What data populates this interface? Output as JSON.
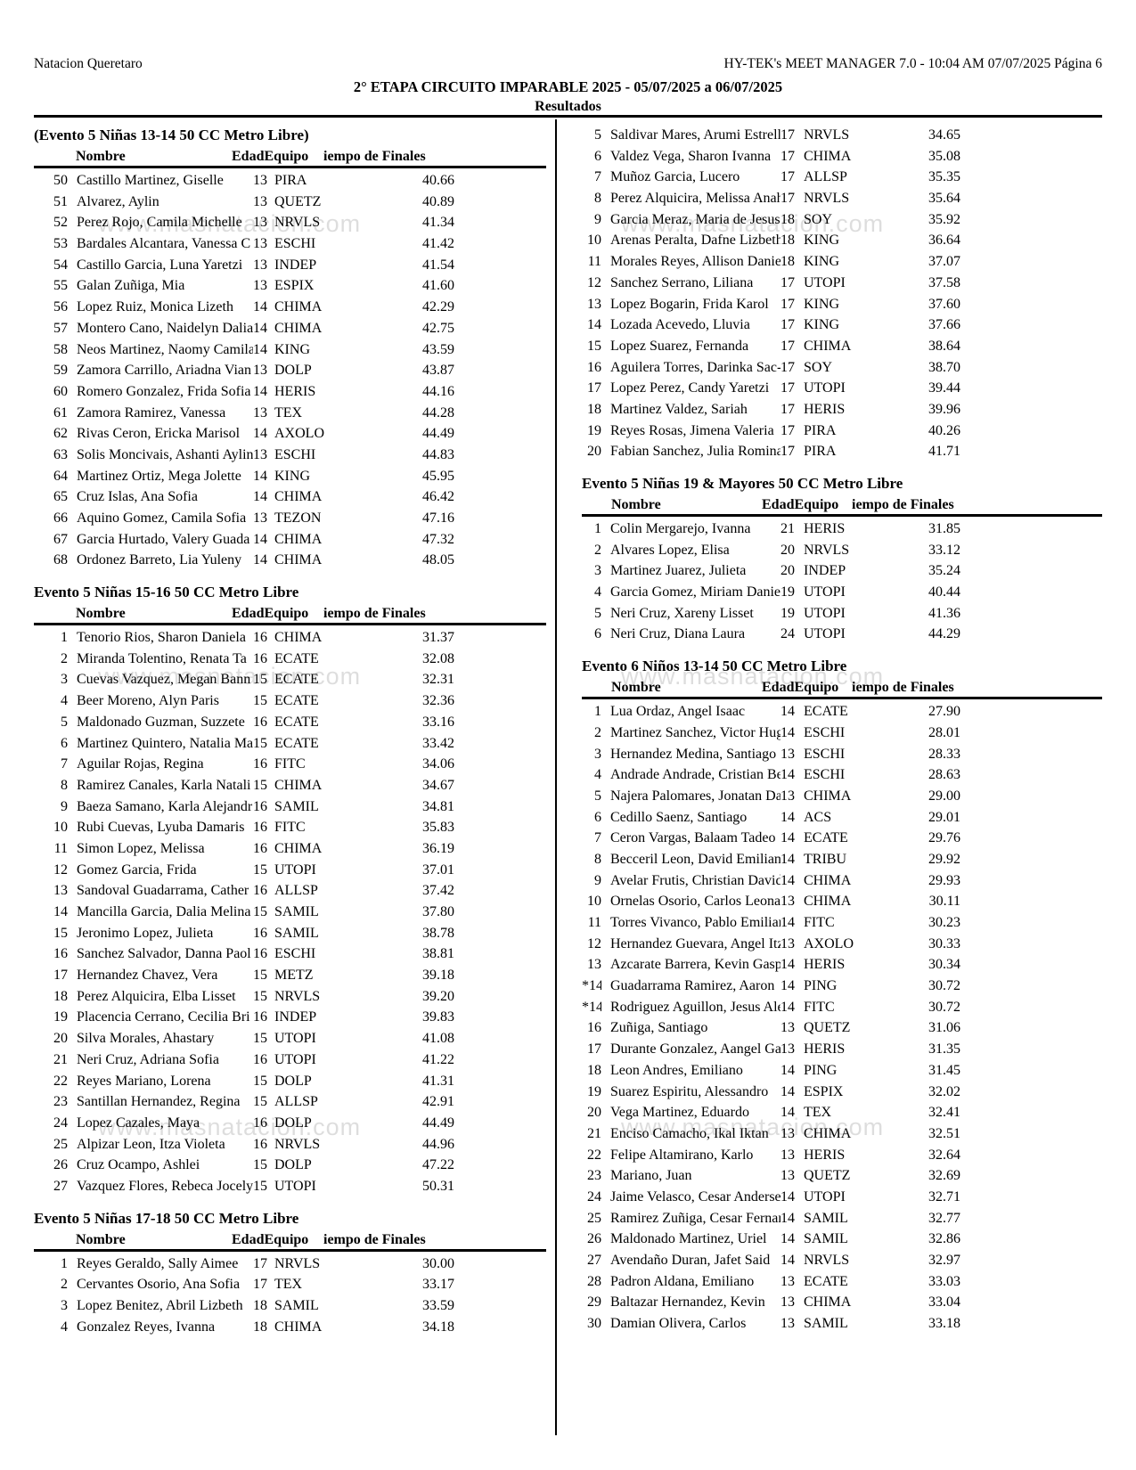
{
  "page": {
    "club": "Natacion Queretaro",
    "software": "HY-TEK's MEET MANAGER 7.0 - 10:04 AM  07/07/2025  Página 6",
    "meet_title": "2° ETAPA CIRCUITO IMPARABLE 2025 - 05/07/2025 a 06/07/2025",
    "results_label": "Resultados",
    "watermark": "www.masnatacion.com"
  },
  "table_header": {
    "name": "Nombre",
    "age_team": "EdadEquipo",
    "time": "iempo de Finales"
  },
  "left_sections": [
    {
      "title": "(Evento 5  Niñas 13-14 50 CC Metro Libre)",
      "rows": [
        {
          "rank": "50",
          "name": "Castillo Martinez, Giselle",
          "age": "13",
          "team": "PIRA",
          "time": "40.66"
        },
        {
          "rank": "51",
          "name": "Alvarez, Aylin",
          "age": "13",
          "team": "QUETZ",
          "time": "40.89"
        },
        {
          "rank": "52",
          "name": "Perez Rojo, Camila Michelle",
          "age": "13",
          "team": "NRVLS",
          "time": "41.34"
        },
        {
          "rank": "53",
          "name": "Bardales Alcantara, Vanessa C",
          "age": "13",
          "team": "ESCHI",
          "time": "41.42"
        },
        {
          "rank": "54",
          "name": "Castillo Garcia, Luna Yaretzi",
          "age": "13",
          "team": "INDEP",
          "time": "41.54"
        },
        {
          "rank": "55",
          "name": "Galan Zuñiga, Mia",
          "age": "13",
          "team": "ESPIX",
          "time": "41.60"
        },
        {
          "rank": "56",
          "name": "Lopez Ruiz, Monica Lizeth",
          "age": "14",
          "team": "CHIMA",
          "time": "42.29"
        },
        {
          "rank": "57",
          "name": "Montero Cano, Naidelyn Dalia",
          "age": "14",
          "team": "CHIMA",
          "time": "42.75"
        },
        {
          "rank": "58",
          "name": "Neos Martinez, Naomy Camila",
          "age": "14",
          "team": "KING",
          "time": "43.59"
        },
        {
          "rank": "59",
          "name": "Zamora Carrillo, Ariadna Vian",
          "age": "13",
          "team": "DOLP",
          "time": "43.87"
        },
        {
          "rank": "60",
          "name": "Romero Gonzalez, Frida Sofia",
          "age": "14",
          "team": "HERIS",
          "time": "44.16"
        },
        {
          "rank": "61",
          "name": "Zamora Ramirez, Vanessa",
          "age": "13",
          "team": "TEX",
          "time": "44.28"
        },
        {
          "rank": "62",
          "name": "Rivas Ceron, Ericka Marisol",
          "age": "14",
          "team": "AXOLO",
          "time": "44.49"
        },
        {
          "rank": "63",
          "name": "Solis Moncivais, Ashanti Aylin",
          "age": "13",
          "team": "ESCHI",
          "time": "44.83"
        },
        {
          "rank": "64",
          "name": "Martinez Ortiz, Mega Jolette",
          "age": "14",
          "team": "KING",
          "time": "45.95"
        },
        {
          "rank": "65",
          "name": "Cruz Islas, Ana Sofia",
          "age": "14",
          "team": "CHIMA",
          "time": "46.42"
        },
        {
          "rank": "66",
          "name": "Aquino Gomez, Camila Sofia",
          "age": "13",
          "team": "TEZON",
          "time": "47.16"
        },
        {
          "rank": "67",
          "name": "Garcia Hurtado, Valery Guada",
          "age": "14",
          "team": "CHIMA",
          "time": "47.32"
        },
        {
          "rank": "68",
          "name": "Ordonez Barreto, Lia Yuleny",
          "age": "14",
          "team": "CHIMA",
          "time": "48.05"
        }
      ]
    },
    {
      "title": "Evento 5  Niñas 15-16 50 CC Metro Libre",
      "rows": [
        {
          "rank": "1",
          "name": "Tenorio Rios, Sharon Daniela",
          "age": "16",
          "team": "CHIMA",
          "time": "31.37"
        },
        {
          "rank": "2",
          "name": "Miranda Tolentino, Renata Ta",
          "age": "16",
          "team": "ECATE",
          "time": "32.08"
        },
        {
          "rank": "3",
          "name": "Cuevas Vazquez, Megan Bann",
          "age": "15",
          "team": "ECATE",
          "time": "32.31"
        },
        {
          "rank": "4",
          "name": "Beer Moreno, Alyn Paris",
          "age": "15",
          "team": "ECATE",
          "time": "32.36"
        },
        {
          "rank": "5",
          "name": "Maldonado Guzman, Suzzete",
          "age": "16",
          "team": "ECATE",
          "time": "33.16"
        },
        {
          "rank": "6",
          "name": "Martinez Quintero, Natalia Ma",
          "age": "15",
          "team": "ECATE",
          "time": "33.42"
        },
        {
          "rank": "7",
          "name": "Aguilar Rojas, Regina",
          "age": "16",
          "team": "FITC",
          "time": "34.06"
        },
        {
          "rank": "8",
          "name": "Ramirez Canales, Karla Natali",
          "age": "15",
          "team": "CHIMA",
          "time": "34.67"
        },
        {
          "rank": "9",
          "name": "Baeza Samano, Karla Alejandr",
          "age": "16",
          "team": "SAMIL",
          "time": "34.81"
        },
        {
          "rank": "10",
          "name": "Rubi Cuevas, Lyuba Damaris",
          "age": "16",
          "team": "FITC",
          "time": "35.83"
        },
        {
          "rank": "11",
          "name": "Simon Lopez, Melissa",
          "age": "16",
          "team": "CHIMA",
          "time": "36.19"
        },
        {
          "rank": "12",
          "name": "Gomez Garcia, Frida",
          "age": "15",
          "team": "UTOPI",
          "time": "37.01"
        },
        {
          "rank": "13",
          "name": "Sandoval Guadarrama, Cather",
          "age": "16",
          "team": "ALLSP",
          "time": "37.42"
        },
        {
          "rank": "14",
          "name": "Mancilla Garcia, Dalia Melina",
          "age": "15",
          "team": "SAMIL",
          "time": "37.80"
        },
        {
          "rank": "15",
          "name": "Jeronimo Lopez, Julieta",
          "age": "16",
          "team": "SAMIL",
          "time": "38.78"
        },
        {
          "rank": "16",
          "name": "Sanchez Salvador, Danna Paol",
          "age": "16",
          "team": "ESCHI",
          "time": "38.81"
        },
        {
          "rank": "17",
          "name": "Hernandez Chavez, Vera",
          "age": "15",
          "team": "METZ",
          "time": "39.18"
        },
        {
          "rank": "18",
          "name": "Perez Alquicira, Elba Lisset",
          "age": "15",
          "team": "NRVLS",
          "time": "39.20"
        },
        {
          "rank": "19",
          "name": "Placencia Cerrano, Cecilia Bri",
          "age": "16",
          "team": "INDEP",
          "time": "39.83"
        },
        {
          "rank": "20",
          "name": "Silva Morales, Ahastary",
          "age": "15",
          "team": "UTOPI",
          "time": "41.08"
        },
        {
          "rank": "21",
          "name": "Neri Cruz, Adriana Sofia",
          "age": "16",
          "team": "UTOPI",
          "time": "41.22"
        },
        {
          "rank": "22",
          "name": "Reyes Mariano, Lorena",
          "age": "15",
          "team": "DOLP",
          "time": "41.31"
        },
        {
          "rank": "23",
          "name": "Santillan Hernandez, Regina",
          "age": "15",
          "team": "ALLSP",
          "time": "42.91"
        },
        {
          "rank": "24",
          "name": "Lopez Cazales, Maya",
          "age": "16",
          "team": "DOLP",
          "time": "44.49"
        },
        {
          "rank": "25",
          "name": "Alpizar Leon, Itza Violeta",
          "age": "16",
          "team": "NRVLS",
          "time": "44.96"
        },
        {
          "rank": "26",
          "name": "Cruz Ocampo, Ashlei",
          "age": "15",
          "team": "DOLP",
          "time": "47.22"
        },
        {
          "rank": "27",
          "name": "Vazquez Flores, Rebeca Jocely",
          "age": "15",
          "team": "UTOPI",
          "time": "50.31"
        }
      ]
    },
    {
      "title": "Evento 5  Niñas 17-18 50 CC Metro Libre",
      "rows": [
        {
          "rank": "1",
          "name": "Reyes Geraldo, Sally Aimee",
          "age": "17",
          "team": "NRVLS",
          "time": "30.00"
        },
        {
          "rank": "2",
          "name": "Cervantes Osorio, Ana Sofia",
          "age": "17",
          "team": "TEX",
          "time": "33.17"
        },
        {
          "rank": "3",
          "name": "Lopez Benitez, Abril Lizbeth",
          "age": "18",
          "team": "SAMIL",
          "time": "33.59"
        },
        {
          "rank": "4",
          "name": "Gonzalez Reyes, Ivanna",
          "age": "18",
          "team": "CHIMA",
          "time": "34.18"
        }
      ]
    }
  ],
  "right_sections": [
    {
      "title": "",
      "rows": [
        {
          "rank": "5",
          "name": "Saldivar Mares, Arumi Estrell",
          "age": "17",
          "team": "NRVLS",
          "time": "34.65"
        },
        {
          "rank": "6",
          "name": "Valdez Vega, Sharon Ivanna",
          "age": "17",
          "team": "CHIMA",
          "time": "35.08"
        },
        {
          "rank": "7",
          "name": "Muñoz Garcia, Lucero",
          "age": "17",
          "team": "ALLSP",
          "time": "35.35"
        },
        {
          "rank": "8",
          "name": "Perez Alquicira, Melissa Anah",
          "age": "17",
          "team": "NRVLS",
          "time": "35.64"
        },
        {
          "rank": "9",
          "name": "Garcia Meraz, Maria de Jesus",
          "age": "18",
          "team": "SOY",
          "time": "35.92"
        },
        {
          "rank": "10",
          "name": "Arenas Peralta, Dafne Lizbeth",
          "age": "18",
          "team": "KING",
          "time": "36.64"
        },
        {
          "rank": "11",
          "name": "Morales Reyes, Allison Daniel",
          "age": "18",
          "team": "KING",
          "time": "37.07"
        },
        {
          "rank": "12",
          "name": "Sanchez Serrano, Liliana",
          "age": "17",
          "team": "UTOPI",
          "time": "37.58"
        },
        {
          "rank": "13",
          "name": "Lopez Bogarin, Frida Karol",
          "age": "17",
          "team": "KING",
          "time": "37.60"
        },
        {
          "rank": "14",
          "name": "Lozada Acevedo, Lluvia",
          "age": "17",
          "team": "KING",
          "time": "37.66"
        },
        {
          "rank": "15",
          "name": "Lopez Suarez, Fernanda",
          "age": "17",
          "team": "CHIMA",
          "time": "38.64"
        },
        {
          "rank": "16",
          "name": "Aguilera Torres, Darinka Sac-",
          "age": "17",
          "team": "SOY",
          "time": "38.70"
        },
        {
          "rank": "17",
          "name": "Lopez Perez, Candy Yaretzi",
          "age": "17",
          "team": "UTOPI",
          "time": "39.44"
        },
        {
          "rank": "18",
          "name": "Martinez Valdez, Sariah",
          "age": "17",
          "team": "HERIS",
          "time": "39.96"
        },
        {
          "rank": "19",
          "name": "Reyes Rosas, Jimena Valeria",
          "age": "17",
          "team": "PIRA",
          "time": "40.26"
        },
        {
          "rank": "20",
          "name": "Fabian Sanchez, Julia Romina",
          "age": "17",
          "team": "PIRA",
          "time": "41.71"
        }
      ]
    },
    {
      "title": "Evento 5  Niñas 19 & Mayores 50 CC Metro Libre",
      "rows": [
        {
          "rank": "1",
          "name": "Colin Mergarejo, Ivanna",
          "age": "21",
          "team": "HERIS",
          "time": "31.85"
        },
        {
          "rank": "2",
          "name": "Alvares Lopez, Elisa",
          "age": "20",
          "team": "NRVLS",
          "time": "33.12"
        },
        {
          "rank": "3",
          "name": "Martinez Juarez, Julieta",
          "age": "20",
          "team": "INDEP",
          "time": "35.24"
        },
        {
          "rank": "4",
          "name": "Garcia Gomez, Miriam Daniel.",
          "age": "19",
          "team": "UTOPI",
          "time": "40.44"
        },
        {
          "rank": "5",
          "name": "Neri Cruz, Xareny Lisset",
          "age": "19",
          "team": "UTOPI",
          "time": "41.36"
        },
        {
          "rank": "6",
          "name": "Neri Cruz, Diana Laura",
          "age": "24",
          "team": "UTOPI",
          "time": "44.29"
        }
      ]
    },
    {
      "title": "Evento 6  Niños 13-14 50 CC Metro Libre",
      "rows": [
        {
          "rank": "1",
          "name": "Lua Ordaz, Angel Isaac",
          "age": "14",
          "team": "ECATE",
          "time": "27.90"
        },
        {
          "rank": "2",
          "name": "Martinez Sanchez, Victor Hug",
          "age": "14",
          "team": "ESCHI",
          "time": "28.01"
        },
        {
          "rank": "3",
          "name": "Hernandez Medina, Santiago",
          "age": "13",
          "team": "ESCHI",
          "time": "28.33"
        },
        {
          "rank": "4",
          "name": "Andrade Andrade, Cristian Be",
          "age": "14",
          "team": "ESCHI",
          "time": "28.63"
        },
        {
          "rank": "5",
          "name": "Najera Palomares, Jonatan Da",
          "age": "13",
          "team": "CHIMA",
          "time": "29.00"
        },
        {
          "rank": "6",
          "name": "Cedillo Saenz, Santiago",
          "age": "14",
          "team": "ACS",
          "time": "29.01"
        },
        {
          "rank": "7",
          "name": "Ceron Vargas, Balaam Tadeo",
          "age": "14",
          "team": "ECATE",
          "time": "29.76"
        },
        {
          "rank": "8",
          "name": "Becceril Leon, David Emiliano",
          "age": "14",
          "team": "TRIBU",
          "time": "29.92"
        },
        {
          "rank": "9",
          "name": "Avelar Frutis, Christian David",
          "age": "14",
          "team": "CHIMA",
          "time": "29.93"
        },
        {
          "rank": "10",
          "name": "Ornelas Osorio, Carlos Leonar",
          "age": "13",
          "team": "CHIMA",
          "time": "30.11"
        },
        {
          "rank": "11",
          "name": "Torres Vivanco, Pablo Emilian",
          "age": "14",
          "team": "FITC",
          "time": "30.23"
        },
        {
          "rank": "12",
          "name": "Hernandez Guevara, Angel Itz",
          "age": "13",
          "team": "AXOLO",
          "time": "30.33"
        },
        {
          "rank": "13",
          "name": "Azcarate Barrera, Kevin Gasp.",
          "age": "14",
          "team": "HERIS",
          "time": "30.34"
        },
        {
          "rank": "*14",
          "name": "Guadarrama Ramirez, Aaron",
          "age": "14",
          "team": "PING",
          "time": "30.72"
        },
        {
          "rank": "*14",
          "name": "Rodriguez Aguillon, Jesus Ale",
          "age": "14",
          "team": "FITC",
          "time": "30.72"
        },
        {
          "rank": "16",
          "name": "Zuñiga, Santiago",
          "age": "13",
          "team": "QUETZ",
          "time": "31.06"
        },
        {
          "rank": "17",
          "name": "Durante Gonzalez, Aangel Gab",
          "age": "13",
          "team": "HERIS",
          "time": "31.35"
        },
        {
          "rank": "18",
          "name": "Leon Andres, Emiliano",
          "age": "14",
          "team": "PING",
          "time": "31.45"
        },
        {
          "rank": "19",
          "name": "Suarez Espiritu, Alessandro",
          "age": "14",
          "team": "ESPIX",
          "time": "32.02"
        },
        {
          "rank": "20",
          "name": "Vega Martinez, Eduardo",
          "age": "14",
          "team": "TEX",
          "time": "32.41"
        },
        {
          "rank": "21",
          "name": "Enciso Camacho, Ikal Iktan",
          "age": "13",
          "team": "CHIMA",
          "time": "32.51"
        },
        {
          "rank": "22",
          "name": "Felipe Altamirano, Karlo",
          "age": "13",
          "team": "HERIS",
          "time": "32.64"
        },
        {
          "rank": "23",
          "name": "Mariano, Juan",
          "age": "13",
          "team": "QUETZ",
          "time": "32.69"
        },
        {
          "rank": "24",
          "name": "Jaime Velasco, Cesar Anderse",
          "age": "14",
          "team": "UTOPI",
          "time": "32.71"
        },
        {
          "rank": "25",
          "name": "Ramirez Zuñiga, Cesar Fernar",
          "age": "14",
          "team": "SAMIL",
          "time": "32.77"
        },
        {
          "rank": "26",
          "name": "Maldonado Martinez, Uriel",
          "age": "14",
          "team": "SAMIL",
          "time": "32.86"
        },
        {
          "rank": "27",
          "name": "Avendaño Duran, Jafet Said",
          "age": "14",
          "team": "NRVLS",
          "time": "32.97"
        },
        {
          "rank": "28",
          "name": "Padron Aldana, Emiliano",
          "age": "13",
          "team": "ECATE",
          "time": "33.03"
        },
        {
          "rank": "29",
          "name": "Baltazar Hernandez, Kevin",
          "age": "13",
          "team": "CHIMA",
          "time": "33.04"
        },
        {
          "rank": "30",
          "name": "Damian Olivera, Carlos",
          "age": "13",
          "team": "SAMIL",
          "time": "33.18"
        }
      ]
    }
  ]
}
